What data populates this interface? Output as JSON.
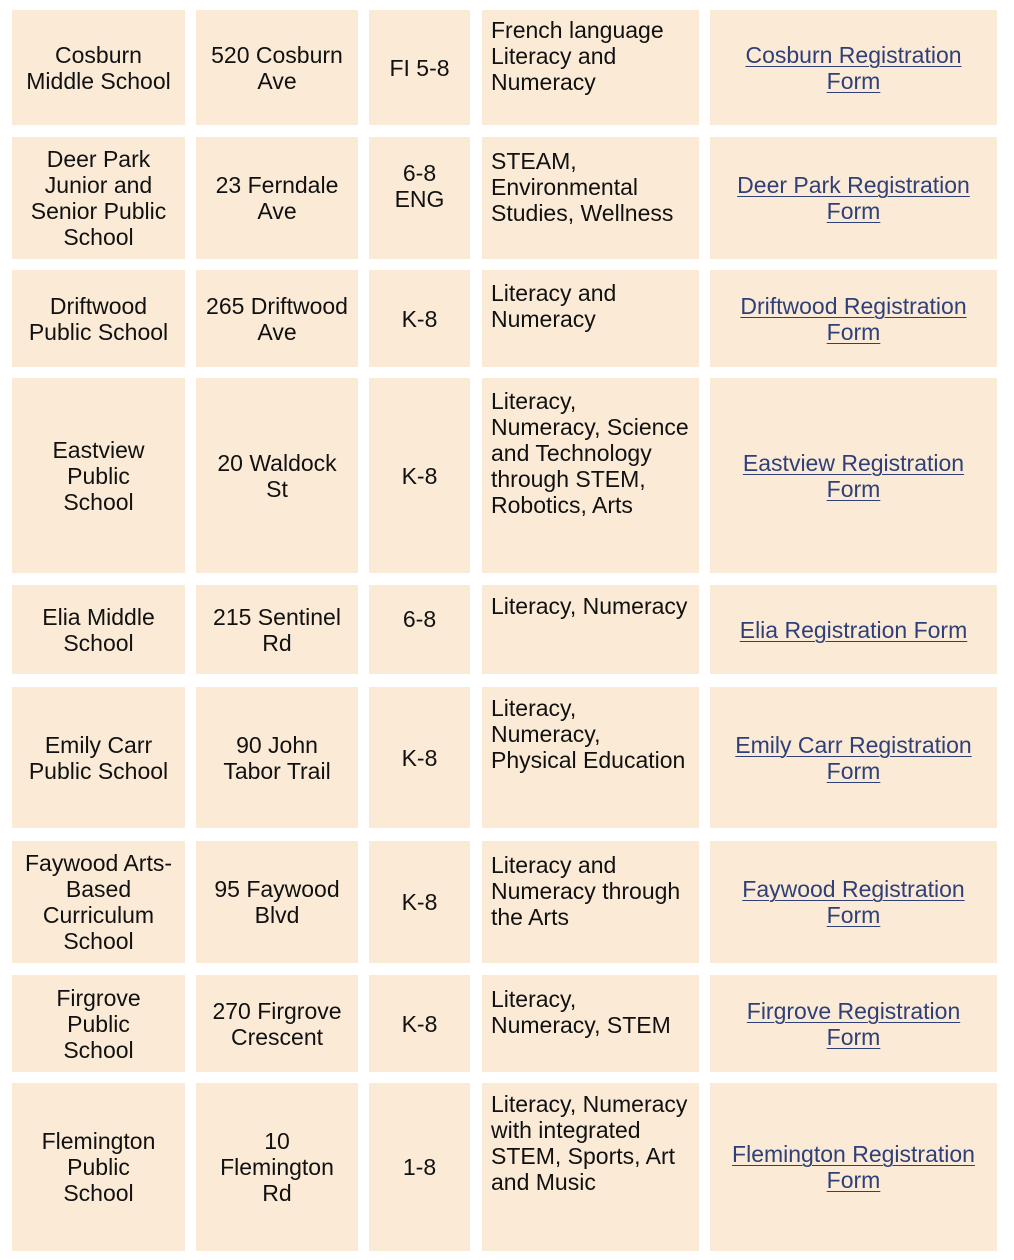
{
  "rows": [
    {
      "name": "Cosburn Middle School",
      "address": "520 Cosburn Ave",
      "grades": "FI 5-8",
      "focus": "French language Literacy and Numeracy",
      "link": "Cosburn Registration Form"
    },
    {
      "name": "Deer Park Junior and Senior Public School",
      "address": "23 Ferndale Ave",
      "grades": "6-8 ENG",
      "focus": "STEAM, Environmental Studies, Wellness",
      "link": "Deer Park Registration Form"
    },
    {
      "name": "Driftwood Public School",
      "address": "265 Driftwood Ave",
      "grades": "K-8",
      "focus": "Literacy and Numeracy",
      "link": "Driftwood Registration Form"
    },
    {
      "name": "Eastview Public School",
      "address": "20 Waldock St",
      "grades": "K-8",
      "focus": "Literacy, Numeracy, Science and Technology through STEM, Robotics, Arts",
      "link": "Eastview Registration Form"
    },
    {
      "name": "Elia Middle School",
      "address": "215 Sentinel Rd",
      "grades": "6-8",
      "focus": "Literacy, Numeracy",
      "link": "Elia Registration Form"
    },
    {
      "name": "Emily Carr Public School",
      "address": "90 John Tabor Trail",
      "grades": "K-8",
      "focus": "Literacy, Numeracy, Physical Education",
      "link": "Emily Carr Registration Form"
    },
    {
      "name": "Faywood Arts-Based Curriculum School",
      "address": "95 Faywood Blvd",
      "grades": "K-8",
      "focus": "Literacy and Numeracy through the Arts",
      "link": "Faywood Registration Form"
    },
    {
      "name": "Firgrove Public School",
      "address": "270 Firgrove Crescent",
      "grades": "K-8",
      "focus": "Literacy, Numeracy, STEM",
      "link": "Firgrove Registration Form"
    },
    {
      "name": "Flemington Public School",
      "address": "10 Flemington Rd",
      "grades": "1-8",
      "focus": "Literacy, Numeracy with integrated STEM, Sports, Art and Music",
      "link": "Flemington Registration Form"
    }
  ],
  "colors": {
    "cell_background": "#fbebd6",
    "link": "#2f3f78",
    "text": "#111111"
  }
}
